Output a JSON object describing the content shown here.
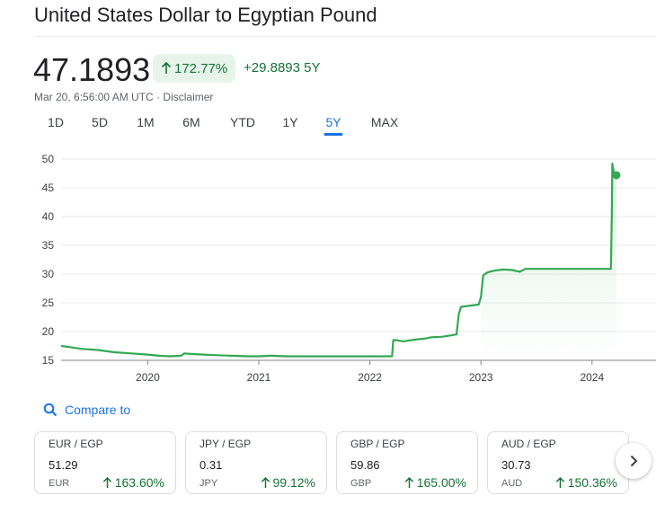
{
  "title": "United States Dollar to Egyptian Pound",
  "price": "47.1893",
  "change_percent": "172.77%",
  "change_abs": "+29.8893 5Y",
  "timestamp": "Mar 20, 6:56:00 AM UTC",
  "separator": " · ",
  "disclaimer": "Disclaimer",
  "tabs": [
    "1D",
    "5D",
    "1M",
    "6M",
    "YTD",
    "1Y",
    "5Y",
    "MAX"
  ],
  "active_tab": "5Y",
  "colors": {
    "up": "#137333",
    "line": "#34a853",
    "accent": "#1a73e8",
    "badge_bg": "#e6f4ea"
  },
  "chart_data": {
    "type": "line",
    "xlabel": "",
    "ylabel": "",
    "x_ticks": [
      "2020",
      "2021",
      "2022",
      "2023",
      "2024"
    ],
    "y_ticks": [
      15,
      20,
      25,
      30,
      35,
      40,
      45,
      50
    ],
    "ylim": [
      15,
      50
    ],
    "xlim": [
      2019.22,
      2024.22
    ],
    "grid": true,
    "series": [
      {
        "x": [
          2019.22,
          2019.3,
          2019.4,
          2019.55,
          2019.7,
          2019.85,
          2020.0,
          2020.1,
          2020.2,
          2020.3,
          2020.33,
          2020.4,
          2020.5,
          2020.6,
          2020.75,
          2020.9,
          2021.0,
          2021.1,
          2021.25,
          2021.4,
          2021.55,
          2021.7,
          2021.85,
          2022.0,
          2022.1,
          2022.2,
          2022.21,
          2022.24,
          2022.3,
          2022.4,
          2022.5,
          2022.55,
          2022.65,
          2022.78,
          2022.8,
          2022.82,
          2022.98,
          2023.0,
          2023.02,
          2023.06,
          2023.12,
          2023.2,
          2023.28,
          2023.35,
          2023.4,
          2023.55,
          2023.7,
          2023.85,
          2024.0,
          2024.12,
          2024.17,
          2024.178,
          2024.183,
          2024.19,
          2024.2,
          2024.21,
          2024.22
        ],
        "y": [
          17.5,
          17.3,
          17.0,
          16.8,
          16.4,
          16.2,
          16.0,
          15.8,
          15.7,
          15.8,
          16.2,
          16.1,
          16.0,
          15.9,
          15.8,
          15.7,
          15.7,
          15.8,
          15.7,
          15.7,
          15.7,
          15.7,
          15.7,
          15.7,
          15.7,
          15.7,
          18.5,
          18.5,
          18.3,
          18.6,
          18.8,
          19.0,
          19.1,
          19.5,
          23.0,
          24.3,
          24.7,
          26.0,
          29.8,
          30.3,
          30.6,
          30.8,
          30.7,
          30.4,
          30.9,
          30.9,
          30.9,
          30.9,
          30.9,
          30.9,
          30.9,
          40.0,
          49.2,
          48.3,
          47.5,
          47.3,
          47.19
        ]
      }
    ],
    "last_value": 47.1893
  },
  "compare_label": "Compare to",
  "compare_cards": [
    {
      "pair": "EUR / EGP",
      "value": "51.29",
      "currency": "EUR",
      "change": "163.60%"
    },
    {
      "pair": "JPY / EGP",
      "value": "0.31",
      "currency": "JPY",
      "change": "99.12%"
    },
    {
      "pair": "GBP / EGP",
      "value": "59.86",
      "currency": "GBP",
      "change": "165.00%"
    },
    {
      "pair": "AUD / EGP",
      "value": "30.73",
      "currency": "AUD",
      "change": "150.36%"
    }
  ],
  "icons": {
    "up_arrow": "arrow-up-icon",
    "search": "search-icon",
    "next": "chevron-right-icon"
  }
}
